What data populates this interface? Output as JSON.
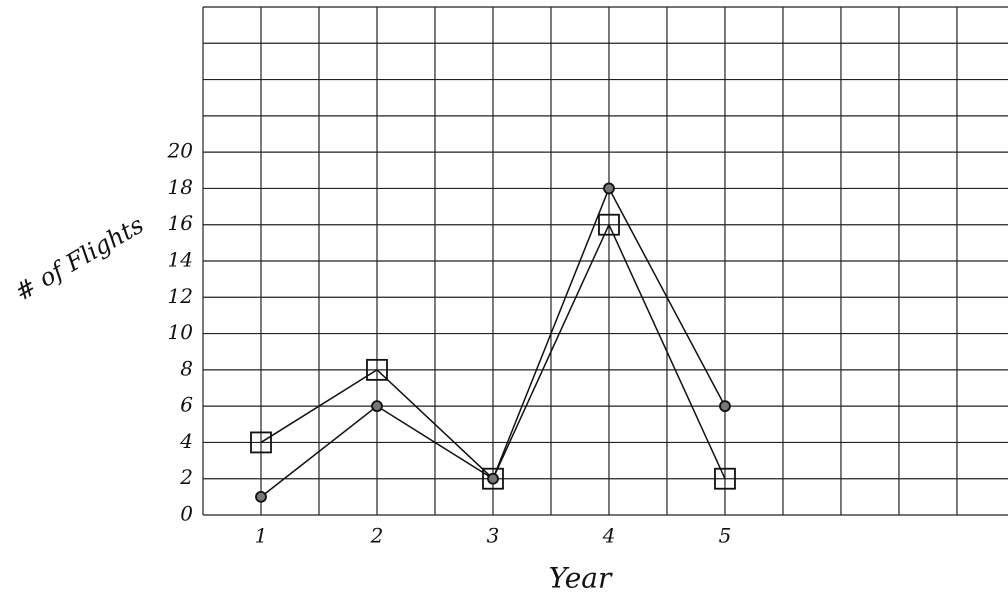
{
  "chart_data": {
    "type": "line",
    "xlabel": "Year",
    "ylabel": "# of Flights",
    "series": [
      {
        "marker": "square",
        "color": "#111111",
        "x": [
          1,
          2,
          3,
          4,
          5
        ],
        "values": [
          4,
          8,
          2,
          16,
          2
        ]
      },
      {
        "marker": "circle",
        "color": "#111111",
        "x": [
          1,
          2,
          3,
          4,
          5
        ],
        "values": [
          1,
          6,
          2,
          18,
          6
        ]
      }
    ],
    "xlim": [
      0.5,
      7.44
    ],
    "xticks": [
      1,
      2,
      3,
      4,
      5
    ],
    "ylim": [
      0,
      28
    ],
    "yticks": [
      0,
      2,
      4,
      6,
      8,
      10,
      12,
      14,
      16,
      18,
      20
    ],
    "grid": true
  }
}
